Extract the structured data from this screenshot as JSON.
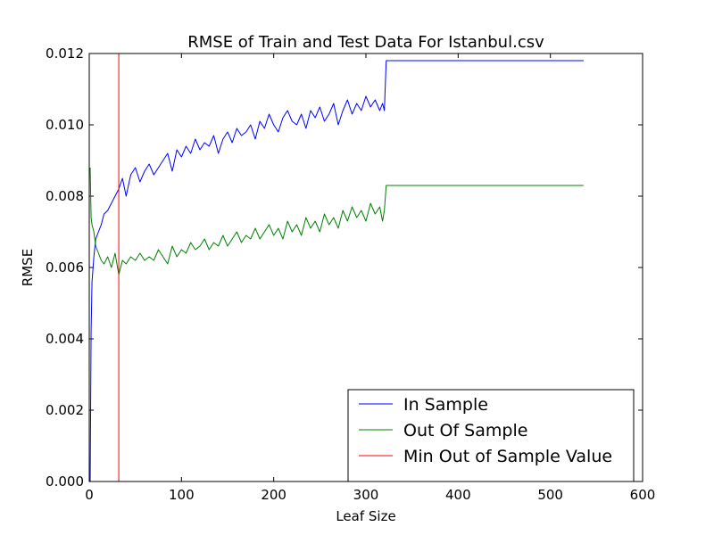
{
  "chart_data": {
    "type": "line",
    "title": "RMSE of Train and Test Data For Istanbul.csv",
    "xlabel": "Leaf Size",
    "ylabel": "RMSE",
    "xlim": [
      0,
      600
    ],
    "ylim": [
      0,
      0.012
    ],
    "x_ticks": [
      0,
      100,
      200,
      300,
      400,
      500,
      600
    ],
    "x_tick_labels": [
      "0",
      "100",
      "200",
      "300",
      "400",
      "500",
      "600"
    ],
    "y_ticks": [
      0,
      0.002,
      0.004,
      0.006,
      0.008,
      0.01,
      0.012
    ],
    "y_tick_labels": [
      "0.000",
      "0.002",
      "0.004",
      "0.006",
      "0.008",
      "0.010",
      "0.012"
    ],
    "grid": false,
    "legend_position": "bottom-right",
    "series": [
      {
        "name": "In Sample",
        "color": "#0000ff",
        "x": [
          1,
          2,
          3,
          5,
          7,
          10,
          13,
          16,
          20,
          24,
          28,
          32,
          36,
          40,
          45,
          50,
          55,
          60,
          65,
          70,
          75,
          80,
          85,
          90,
          95,
          100,
          105,
          110,
          115,
          120,
          125,
          130,
          135,
          140,
          145,
          150,
          155,
          160,
          165,
          170,
          175,
          180,
          185,
          190,
          195,
          200,
          205,
          210,
          215,
          220,
          225,
          230,
          235,
          240,
          245,
          250,
          255,
          260,
          265,
          270,
          275,
          280,
          285,
          290,
          295,
          300,
          305,
          310,
          315,
          318,
          320,
          322,
          536
        ],
        "y": [
          0.0,
          0.0042,
          0.0056,
          0.0063,
          0.0068,
          0.007,
          0.0072,
          0.0075,
          0.0076,
          0.0078,
          0.008,
          0.0082,
          0.0085,
          0.008,
          0.0086,
          0.0088,
          0.0084,
          0.0087,
          0.0089,
          0.0086,
          0.0088,
          0.009,
          0.0092,
          0.0087,
          0.0093,
          0.0091,
          0.0094,
          0.0092,
          0.0096,
          0.0093,
          0.0095,
          0.0094,
          0.0097,
          0.0092,
          0.0096,
          0.0098,
          0.0095,
          0.0099,
          0.0097,
          0.0098,
          0.01,
          0.0096,
          0.0101,
          0.0099,
          0.0103,
          0.01,
          0.0098,
          0.0102,
          0.0104,
          0.0101,
          0.01,
          0.0103,
          0.0099,
          0.0104,
          0.0102,
          0.0105,
          0.0101,
          0.0103,
          0.0106,
          0.01,
          0.0104,
          0.0107,
          0.0103,
          0.0106,
          0.0104,
          0.0108,
          0.0105,
          0.0107,
          0.0104,
          0.0106,
          0.0104,
          0.0118,
          0.0118
        ]
      },
      {
        "name": "Out Of Sample",
        "color": "#008000",
        "x": [
          1,
          2,
          3,
          5,
          7,
          10,
          13,
          16,
          20,
          24,
          28,
          32,
          36,
          40,
          45,
          50,
          55,
          60,
          65,
          70,
          75,
          80,
          85,
          90,
          95,
          100,
          105,
          110,
          115,
          120,
          125,
          130,
          135,
          140,
          145,
          150,
          155,
          160,
          165,
          170,
          175,
          180,
          185,
          190,
          195,
          200,
          205,
          210,
          215,
          220,
          225,
          230,
          235,
          240,
          245,
          250,
          255,
          260,
          265,
          270,
          275,
          280,
          285,
          290,
          295,
          300,
          305,
          310,
          315,
          318,
          320,
          322,
          536
        ],
        "y": [
          0.0088,
          0.0074,
          0.0072,
          0.007,
          0.0066,
          0.0064,
          0.0062,
          0.0061,
          0.0063,
          0.006,
          0.0064,
          0.0058,
          0.0062,
          0.0061,
          0.0063,
          0.0062,
          0.0064,
          0.0062,
          0.0063,
          0.0062,
          0.0065,
          0.0063,
          0.0061,
          0.0066,
          0.0063,
          0.0065,
          0.0064,
          0.0067,
          0.0065,
          0.0066,
          0.0068,
          0.0065,
          0.0067,
          0.0066,
          0.0069,
          0.0066,
          0.0068,
          0.007,
          0.0067,
          0.0069,
          0.0068,
          0.0071,
          0.0068,
          0.007,
          0.0072,
          0.0069,
          0.0071,
          0.0068,
          0.0073,
          0.007,
          0.0072,
          0.0069,
          0.0074,
          0.0071,
          0.0073,
          0.007,
          0.0075,
          0.0072,
          0.0074,
          0.0071,
          0.0076,
          0.0073,
          0.0077,
          0.0074,
          0.0076,
          0.0073,
          0.0078,
          0.0075,
          0.0077,
          0.0073,
          0.0076,
          0.0083,
          0.0083
        ]
      },
      {
        "name": "Min Out of Sample Value",
        "color": "#ff0000",
        "x": [
          32,
          32
        ],
        "y": [
          0,
          0.012
        ]
      }
    ]
  }
}
